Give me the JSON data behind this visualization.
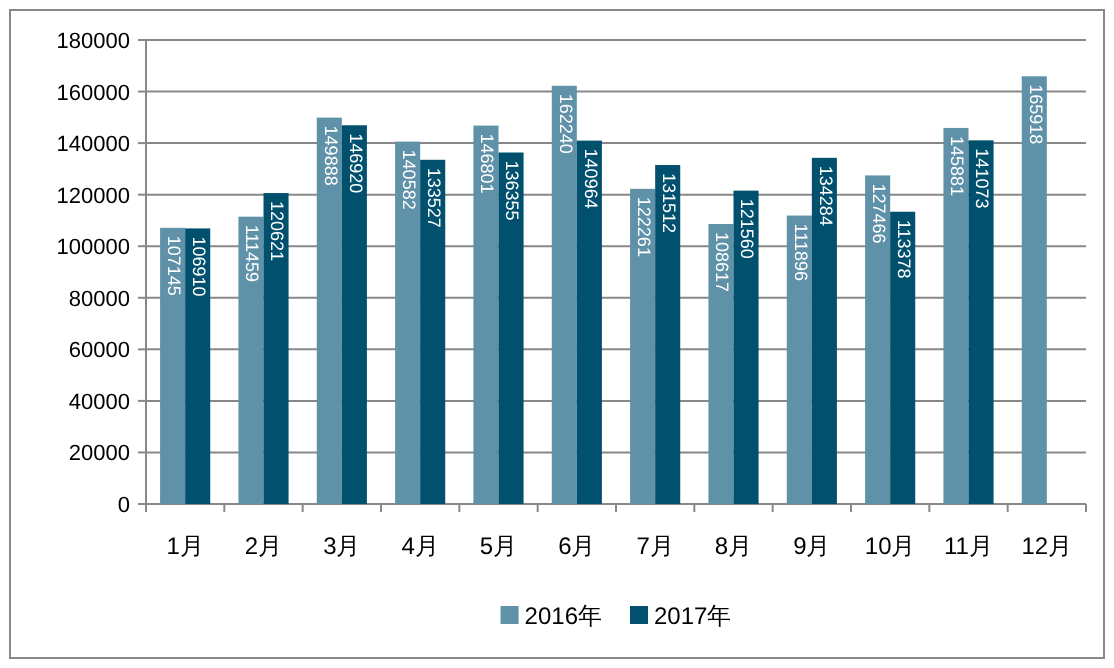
{
  "chart_data": {
    "type": "bar",
    "categories": [
      "1月",
      "2月",
      "3月",
      "4月",
      "5月",
      "6月",
      "7月",
      "8月",
      "9月",
      "10月",
      "11月",
      "12月"
    ],
    "series": [
      {
        "name": "2016年",
        "color": "#5f91a8",
        "values": [
          107145,
          111459,
          149888,
          140582,
          146801,
          162240,
          122261,
          108617,
          111896,
          127466,
          145881,
          165918
        ]
      },
      {
        "name": "2017年",
        "color": "#00506e",
        "values": [
          106910,
          120621,
          146920,
          133527,
          136355,
          140964,
          131512,
          121560,
          134284,
          113378,
          141073,
          null
        ]
      }
    ],
    "ylim": [
      0,
      180000
    ],
    "yticks": [
      0,
      20000,
      40000,
      60000,
      80000,
      100000,
      120000,
      140000,
      160000,
      180000
    ],
    "grid": "y",
    "legend": "bottom",
    "data_labels": true
  }
}
